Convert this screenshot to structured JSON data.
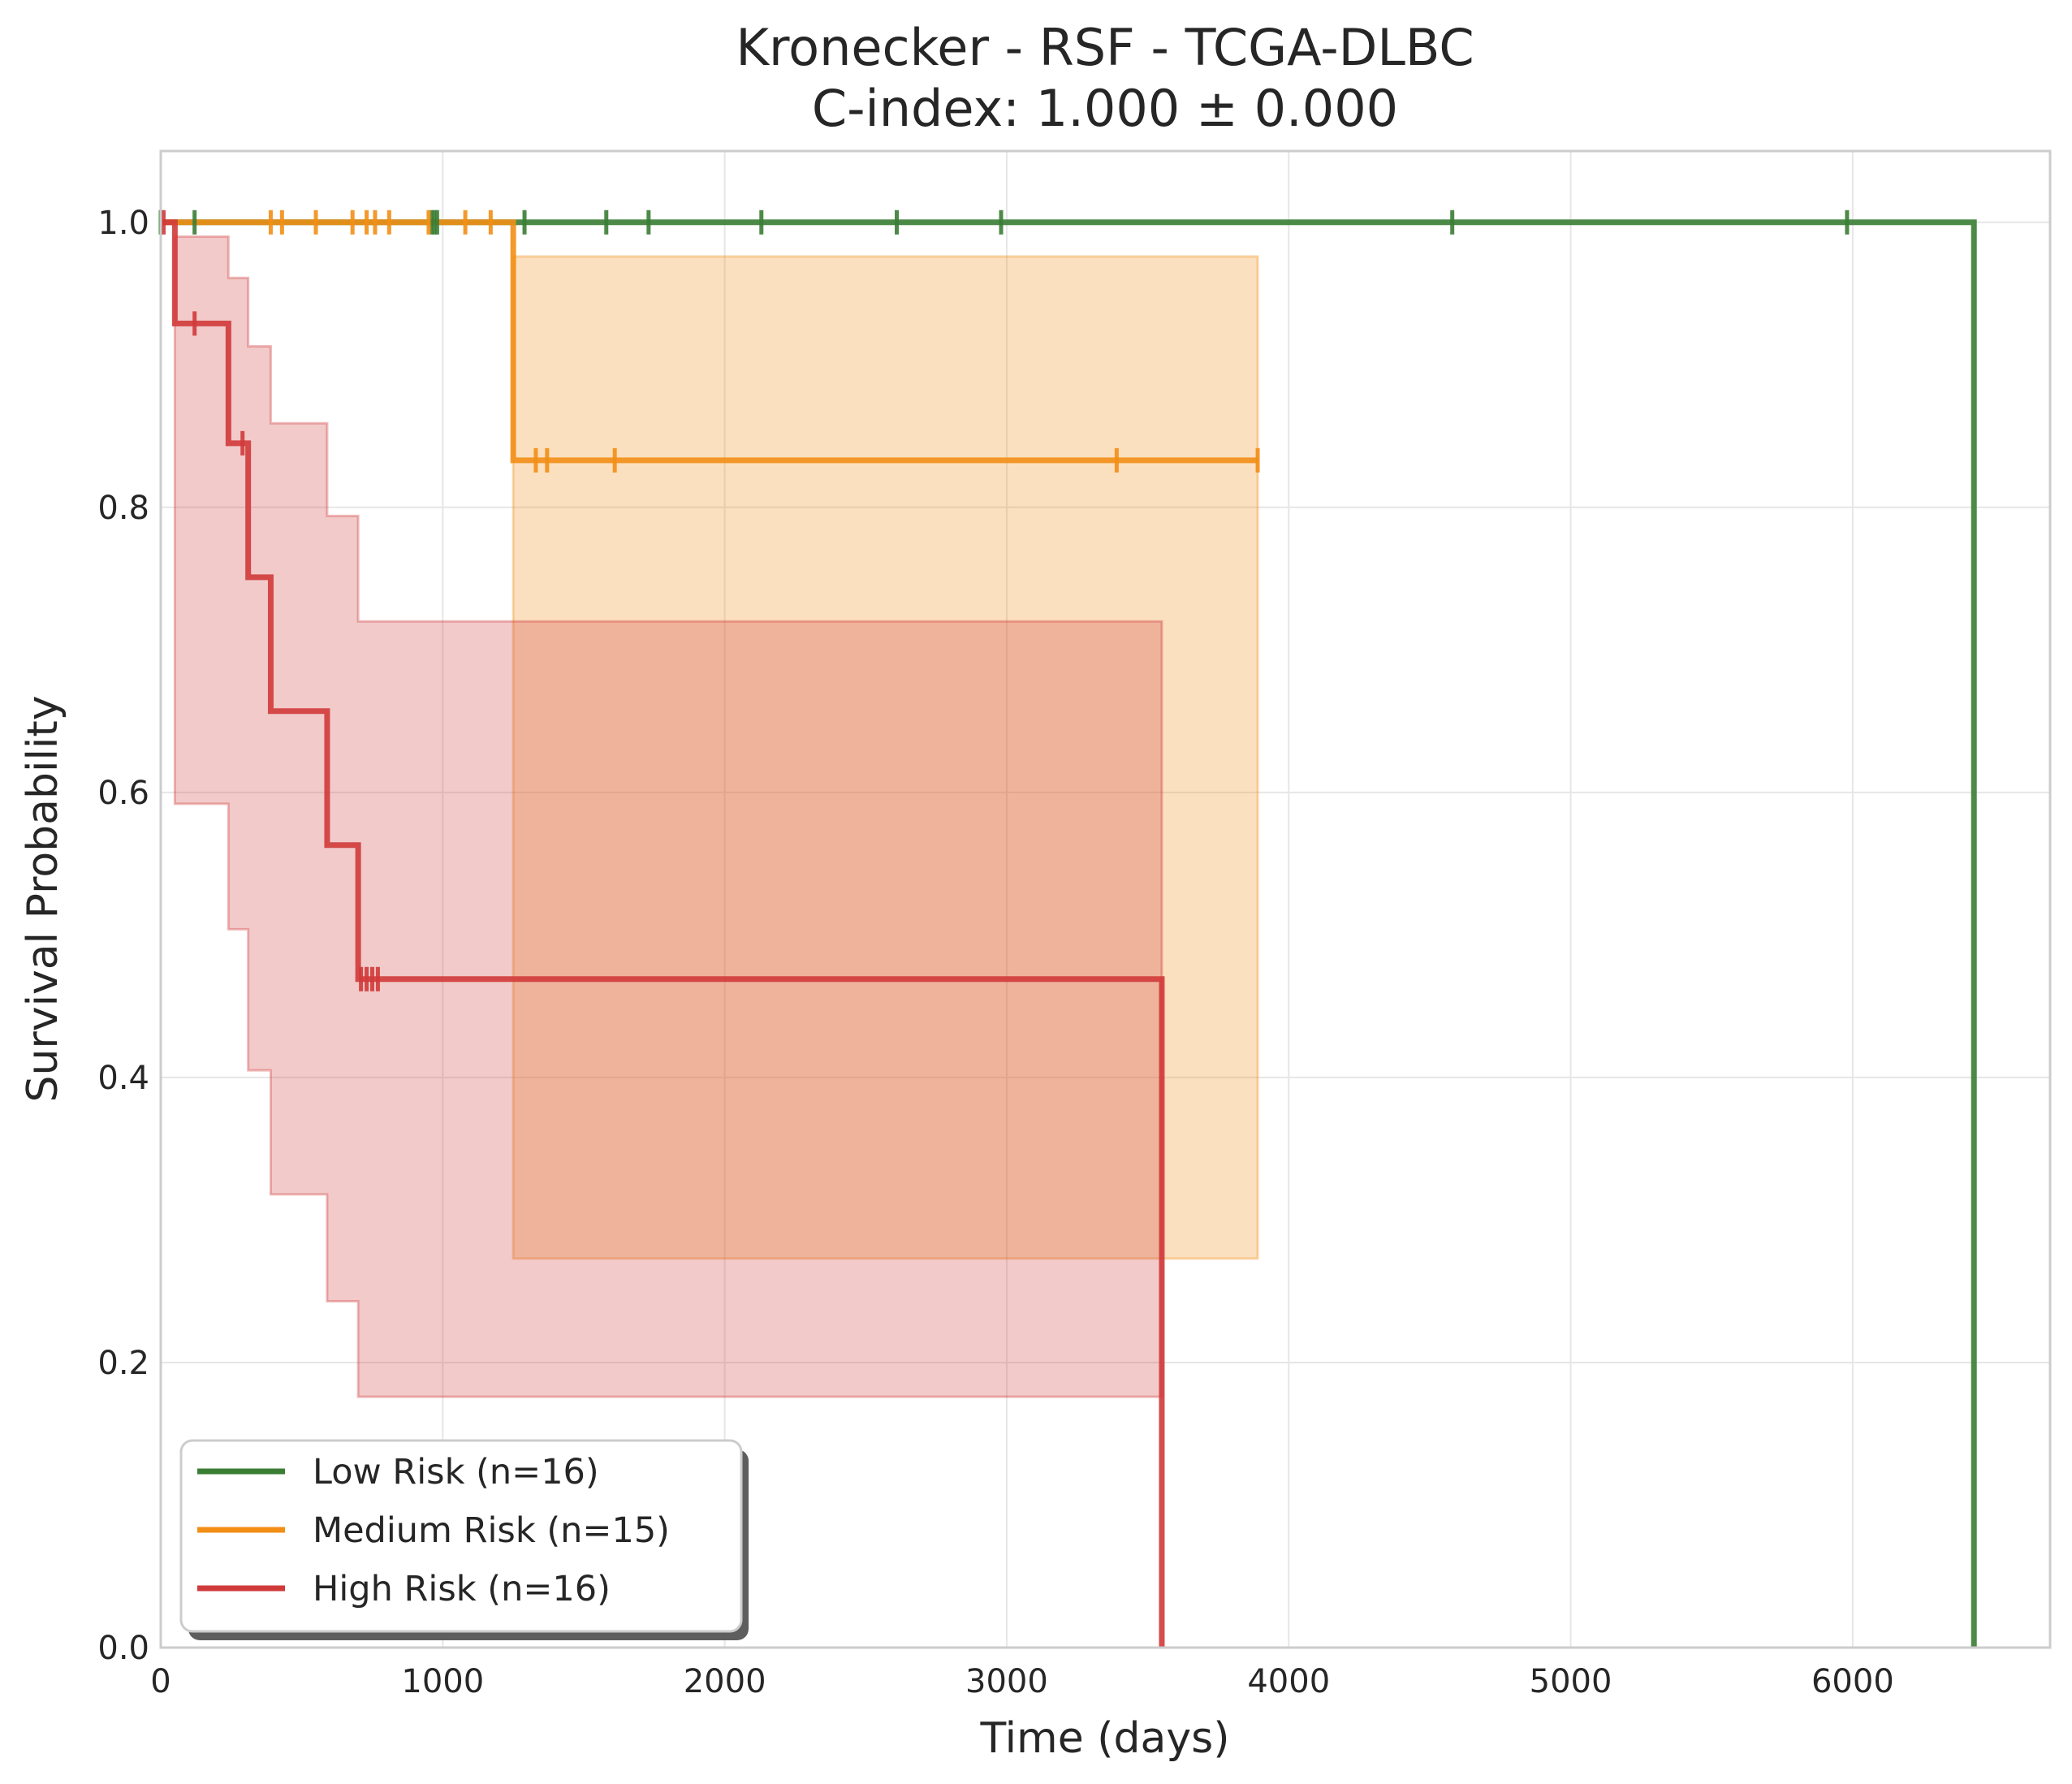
{
  "chart_data": {
    "type": "line",
    "subtype": "kaplan-meier",
    "title": "Kronecker - RSF - TCGA-DLBC",
    "subtitle": "C-index: 1.000 ± 0.000",
    "xlabel": "Time (days)",
    "ylabel": "Survival Probability",
    "xlim": [
      0,
      6700
    ],
    "ylim": [
      0.0,
      1.05
    ],
    "x_ticks": [
      0,
      1000,
      2000,
      3000,
      4000,
      5000,
      6000
    ],
    "x_tick_labels": [
      "0",
      "1000",
      "2000",
      "3000",
      "4000",
      "5000",
      "6000"
    ],
    "y_ticks": [
      0.0,
      0.2,
      0.4,
      0.6,
      0.8,
      1.0
    ],
    "y_tick_labels": [
      "0.0",
      "0.2",
      "0.4",
      "0.6",
      "0.8",
      "1.0"
    ],
    "grid": true,
    "legend_position": "lower-left",
    "series": [
      {
        "name": "Low Risk (n=16)",
        "color": "#3a7d34",
        "steps": [
          [
            0,
            1.0
          ],
          [
            6430,
            1.0
          ],
          [
            6430,
            0.0
          ]
        ],
        "censor_times": [
          0,
          120,
          960,
          970,
          980,
          1290,
          1580,
          1730,
          2130,
          2610,
          2980,
          4580,
          5980
        ],
        "ci": null
      },
      {
        "name": "Medium Risk (n=15)",
        "color": "#f28e16",
        "steps": [
          [
            0,
            1.0
          ],
          [
            1250,
            1.0
          ],
          [
            1250,
            0.833
          ],
          [
            3890,
            0.833
          ]
        ],
        "censor_times": [
          390,
          430,
          550,
          680,
          730,
          760,
          810,
          950,
          1080,
          1170,
          1330,
          1370,
          1610,
          3390,
          3890
        ],
        "ci": {
          "intervals": [
            [
              1250,
              3890,
              0.273,
              0.976
            ]
          ]
        }
      },
      {
        "name": "High Risk (n=16)",
        "color": "#d03a3a",
        "steps": [
          [
            0,
            1.0
          ],
          [
            50,
            1.0
          ],
          [
            50,
            0.929
          ],
          [
            240,
            0.929
          ],
          [
            240,
            0.845
          ],
          [
            310,
            0.845
          ],
          [
            310,
            0.751
          ],
          [
            390,
            0.751
          ],
          [
            390,
            0.657
          ],
          [
            590,
            0.657
          ],
          [
            590,
            0.563
          ],
          [
            700,
            0.563
          ],
          [
            700,
            0.469
          ],
          [
            3550,
            0.469
          ],
          [
            3550,
            0.0
          ]
        ],
        "censor_times": [
          10,
          120,
          290,
          710,
          730,
          750,
          770
        ],
        "ci": {
          "intervals": [
            [
              50,
              240,
              0.592,
              0.99
            ],
            [
              240,
              310,
              0.504,
              0.961
            ],
            [
              310,
              390,
              0.405,
              0.913
            ],
            [
              390,
              590,
              0.318,
              0.859
            ],
            [
              590,
              700,
              0.243,
              0.794
            ],
            [
              700,
              3550,
              0.176,
              0.72
            ]
          ]
        }
      }
    ]
  }
}
